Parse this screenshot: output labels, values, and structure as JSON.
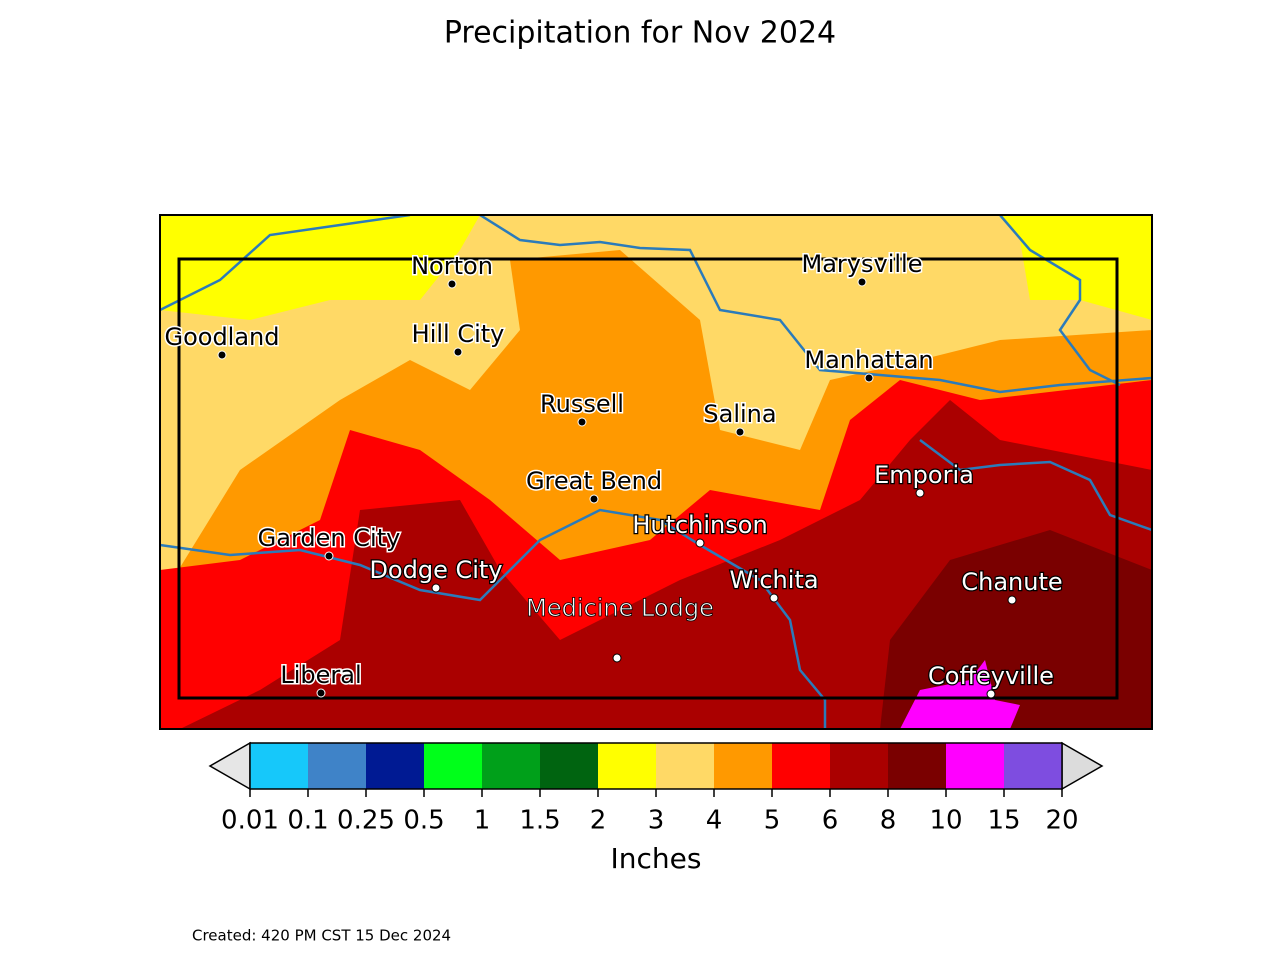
{
  "title": "Precipitation for Nov 2024",
  "map": {
    "cities": [
      "Norton",
      "Marysville",
      "Goodland",
      "Hill City",
      "Manhattan",
      "Russell",
      "Salina",
      "Great Bend",
      "Emporia",
      "Hutchinson",
      "Garden City",
      "Dodge City",
      "Wichita",
      "Chanute",
      "Medicine Lodge",
      "Liberal",
      "Coffeyville"
    ]
  },
  "colorbar": {
    "ticks": [
      0.01,
      0.1,
      0.25,
      0.5,
      1,
      1.5,
      2,
      3,
      4,
      5,
      6,
      8,
      10,
      15,
      20
    ],
    "colors": [
      "#16c8fa",
      "#3f83c8",
      "#001a93",
      "#00ff1a",
      "#00a01a",
      "#006410",
      "#ffff00",
      "#ffd966",
      "#ff9900",
      "#ff0000",
      "#aa0000",
      "#7a0000",
      "#ff00ff",
      "#7e4de0"
    ],
    "label": "Inches"
  },
  "footer": "Created: 420 PM CST 15 Dec 2024"
}
